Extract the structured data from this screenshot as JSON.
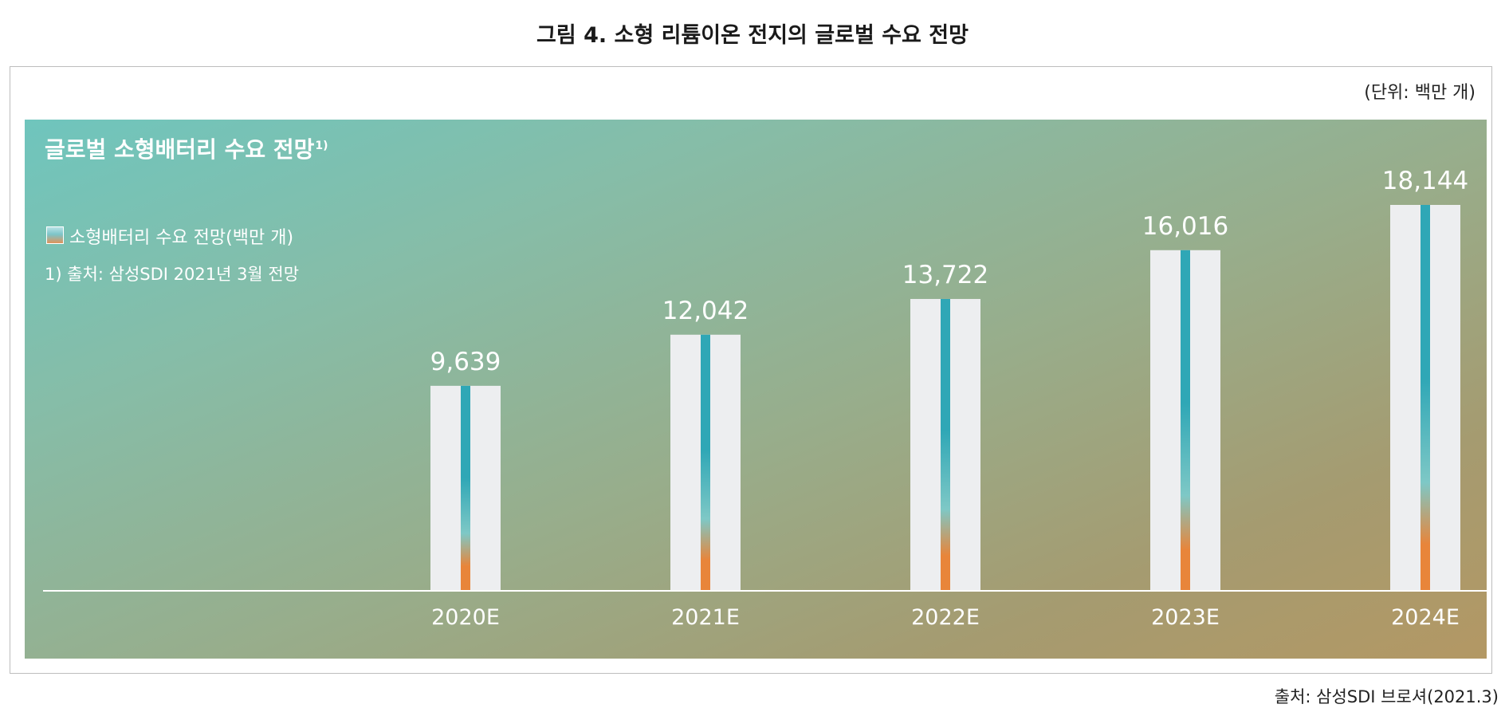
{
  "figure_title": "그림 4. 소형 리튬이온 전지의 글로벌 수요 전망",
  "unit": "(단위: 백만 개)",
  "source": "출처: 삼성SDI 브로셔(2021.3)",
  "panel": {
    "heading": "글로벌 소형배터리 수요 전망",
    "heading_sup": "1)",
    "footnote": "1) 출처: 삼성SDI 2021년 3월 전망"
  },
  "colors": {
    "bar_body": "#edeef0",
    "stripe_top": "#2fa7b6",
    "stripe_mid": "#7ec8c6",
    "stripe_bottom": "#e8853a",
    "baseline": "#ffffff",
    "text": "#ffffff"
  },
  "chart_data": {
    "type": "bar",
    "title": "글로벌 소형배터리 수요 전망",
    "xlabel": "",
    "ylabel": "",
    "categories": [
      "2020E",
      "2021E",
      "2022E",
      "2023E",
      "2024E"
    ],
    "series": [
      {
        "name": "소형배터리 수요 전망(백만 개)",
        "values": [
          9639,
          12042,
          13722,
          16016,
          18144
        ],
        "value_labels": [
          "9,639",
          "12,042",
          "13,722",
          "16,016",
          "18,144"
        ]
      }
    ],
    "ylim": [
      0,
      18144
    ],
    "grid": false,
    "legend_position": "top-left"
  }
}
